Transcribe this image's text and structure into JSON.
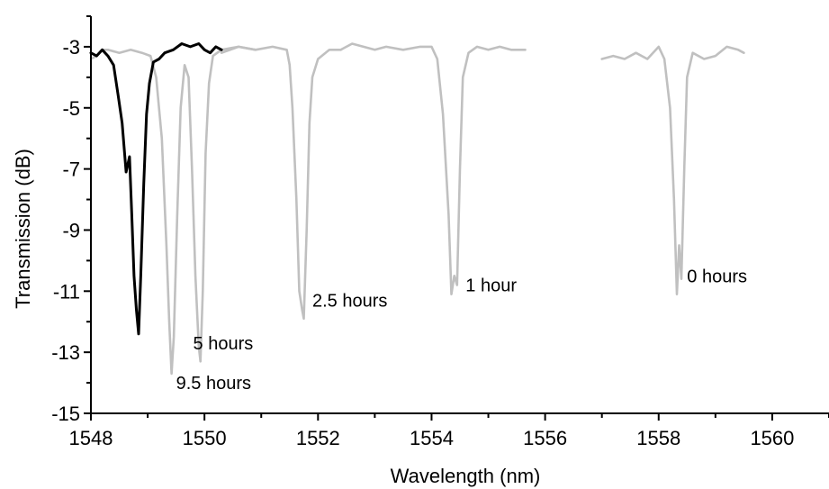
{
  "chart_data": {
    "type": "line",
    "xlabel": "Wavelength (nm)",
    "ylabel": "Transmission (dB)",
    "xlim": [
      1548,
      1561
    ],
    "ylim": [
      -15,
      -2
    ],
    "x_ticks": [
      "1548",
      "1550",
      "1552",
      "1554",
      "1556",
      "1558",
      "1560"
    ],
    "y_ticks": [
      "-3",
      "-5",
      "-7",
      "-9",
      "-11",
      "-13",
      "-15"
    ],
    "grid": false,
    "legend": "none",
    "colors": {
      "gray": "#c0c0c0",
      "black": "#000000"
    },
    "series": [
      {
        "color": "#c0c0c0",
        "points": [
          [
            1557.0,
            -3.4
          ],
          [
            1557.2,
            -3.3
          ],
          [
            1557.4,
            -3.4
          ],
          [
            1557.6,
            -3.2
          ],
          [
            1557.8,
            -3.4
          ],
          [
            1558.0,
            -3.0
          ],
          [
            1558.1,
            -3.4
          ],
          [
            1558.2,
            -5.0
          ],
          [
            1558.27,
            -8.0
          ],
          [
            1558.32,
            -11.1
          ],
          [
            1558.36,
            -9.5
          ],
          [
            1558.4,
            -10.6
          ],
          [
            1558.45,
            -7.0
          ],
          [
            1558.5,
            -4.0
          ],
          [
            1558.6,
            -3.2
          ],
          [
            1558.8,
            -3.4
          ],
          [
            1559.0,
            -3.3
          ],
          [
            1559.2,
            -3.0
          ],
          [
            1559.4,
            -3.1
          ],
          [
            1559.5,
            -3.2
          ]
        ]
      },
      {
        "color": "#c0c0c0",
        "points": [
          [
            1552.4,
            -3.1
          ],
          [
            1552.6,
            -2.9
          ],
          [
            1552.8,
            -3.0
          ],
          [
            1553.0,
            -3.1
          ],
          [
            1553.2,
            -3.0
          ],
          [
            1553.5,
            -3.1
          ],
          [
            1553.8,
            -3.0
          ],
          [
            1554.0,
            -3.0
          ],
          [
            1554.1,
            -3.4
          ],
          [
            1554.2,
            -5.2
          ],
          [
            1554.3,
            -8.5
          ],
          [
            1554.35,
            -11.1
          ],
          [
            1554.4,
            -10.5
          ],
          [
            1554.45,
            -10.8
          ],
          [
            1554.5,
            -7.0
          ],
          [
            1554.55,
            -4.0
          ],
          [
            1554.65,
            -3.2
          ],
          [
            1554.8,
            -3.0
          ],
          [
            1555.0,
            -3.1
          ],
          [
            1555.2,
            -3.0
          ],
          [
            1555.4,
            -3.1
          ],
          [
            1555.65,
            -3.1
          ]
        ]
      },
      {
        "color": "#c0c0c0",
        "points": [
          [
            1550.3,
            -3.2
          ],
          [
            1550.6,
            -3.0
          ],
          [
            1550.9,
            -3.1
          ],
          [
            1551.2,
            -3.0
          ],
          [
            1551.45,
            -3.1
          ],
          [
            1551.5,
            -3.6
          ],
          [
            1551.55,
            -5.0
          ],
          [
            1551.62,
            -8.0
          ],
          [
            1551.67,
            -11.0
          ],
          [
            1551.72,
            -11.6
          ],
          [
            1551.75,
            -11.9
          ],
          [
            1551.8,
            -9.0
          ],
          [
            1551.85,
            -5.5
          ],
          [
            1551.9,
            -4.0
          ],
          [
            1552.0,
            -3.4
          ],
          [
            1552.2,
            -3.1
          ],
          [
            1552.4,
            -3.1
          ]
        ]
      },
      {
        "color": "#c0c0c0",
        "points": [
          [
            1548.0,
            -3.4
          ],
          [
            1548.1,
            -3.3
          ],
          [
            1548.2,
            -3.1
          ],
          [
            1548.3,
            -3.1
          ],
          [
            1548.5,
            -3.2
          ],
          [
            1548.7,
            -3.1
          ],
          [
            1548.9,
            -3.2
          ],
          [
            1549.05,
            -3.3
          ],
          [
            1549.15,
            -4.0
          ],
          [
            1549.25,
            -6.0
          ],
          [
            1549.33,
            -9.5
          ],
          [
            1549.38,
            -12.0
          ],
          [
            1549.42,
            -13.7
          ],
          [
            1549.46,
            -12.5
          ],
          [
            1549.52,
            -8.5
          ],
          [
            1549.58,
            -5.0
          ],
          [
            1549.65,
            -3.6
          ],
          [
            1549.72,
            -4.0
          ],
          [
            1549.78,
            -7.0
          ],
          [
            1549.84,
            -10.5
          ],
          [
            1549.9,
            -12.8
          ],
          [
            1549.93,
            -13.3
          ],
          [
            1549.97,
            -11.0
          ],
          [
            1550.02,
            -6.5
          ],
          [
            1550.08,
            -4.2
          ],
          [
            1550.15,
            -3.3
          ],
          [
            1550.3,
            -3.1
          ],
          [
            1550.6,
            -3.0
          ],
          [
            1550.9,
            -3.1
          ]
        ]
      },
      {
        "color": "#000000",
        "points": [
          [
            1548.0,
            -3.2
          ],
          [
            1548.1,
            -3.3
          ],
          [
            1548.2,
            -3.1
          ],
          [
            1548.3,
            -3.3
          ],
          [
            1548.4,
            -3.6
          ],
          [
            1548.48,
            -4.6
          ],
          [
            1548.55,
            -5.5
          ],
          [
            1548.62,
            -7.1
          ],
          [
            1548.68,
            -6.6
          ],
          [
            1548.72,
            -8.5
          ],
          [
            1548.76,
            -10.5
          ],
          [
            1548.8,
            -11.6
          ],
          [
            1548.84,
            -12.4
          ],
          [
            1548.88,
            -10.4
          ],
          [
            1548.93,
            -7.5
          ],
          [
            1548.98,
            -5.2
          ],
          [
            1549.03,
            -4.2
          ],
          [
            1549.1,
            -3.5
          ],
          [
            1549.2,
            -3.4
          ],
          [
            1549.3,
            -3.2
          ],
          [
            1549.45,
            -3.1
          ],
          [
            1549.6,
            -2.9
          ],
          [
            1549.75,
            -3.0
          ],
          [
            1549.9,
            -2.9
          ],
          [
            1550.0,
            -3.1
          ],
          [
            1550.1,
            -3.2
          ],
          [
            1550.2,
            -3.0
          ],
          [
            1550.3,
            -3.1
          ]
        ]
      }
    ],
    "annotations": [
      {
        "text": "0 hours",
        "x": 1558.5,
        "y": -10.5
      },
      {
        "text": "1 hour",
        "x": 1554.6,
        "y": -10.8
      },
      {
        "text": "2.5 hours",
        "x": 1551.9,
        "y": -11.3
      },
      {
        "text": "5 hours",
        "x": 1549.8,
        "y": -12.7
      },
      {
        "text": "9.5 hours",
        "x": 1549.5,
        "y": -14.0
      }
    ]
  }
}
